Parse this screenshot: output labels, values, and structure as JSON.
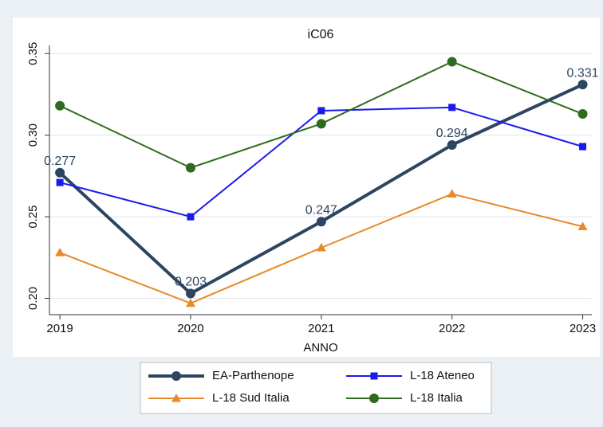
{
  "chart_data": {
    "type": "line",
    "title": "iC06",
    "x_label": "ANNO",
    "x": [
      2019,
      2020,
      2021,
      2022,
      2023
    ],
    "xlim": [
      2018.92,
      2023.07
    ],
    "xticks": [
      2019,
      2020,
      2021,
      2022,
      2023
    ],
    "ylim": [
      0.19,
      0.355
    ],
    "yticks": [
      {
        "value": 0.2,
        "label": "0.20"
      },
      0.25,
      {
        "value": 0.3,
        "label": "0.30"
      },
      0.35
    ],
    "grid": true,
    "legend": "bottom",
    "series": [
      {
        "name": "EA-Parthenope",
        "color": "#2c4560",
        "marker": "circle",
        "values": [
          0.277,
          0.203,
          0.247,
          0.294,
          0.331
        ],
        "labeled": true
      },
      {
        "name": "L-18 Ateneo",
        "color": "#1a1aee",
        "marker": "square",
        "values": [
          0.271,
          0.25,
          0.315,
          0.317,
          0.293
        ]
      },
      {
        "name": "L-18 Sud Italia",
        "color": "#e8892a",
        "marker": "triangle",
        "values": [
          0.228,
          0.197,
          0.231,
          0.264,
          0.244
        ]
      },
      {
        "name": "L-18 Italia",
        "color": "#2e6b1e",
        "marker": "circle",
        "values": [
          0.318,
          0.28,
          0.307,
          0.345,
          0.313
        ]
      }
    ]
  }
}
